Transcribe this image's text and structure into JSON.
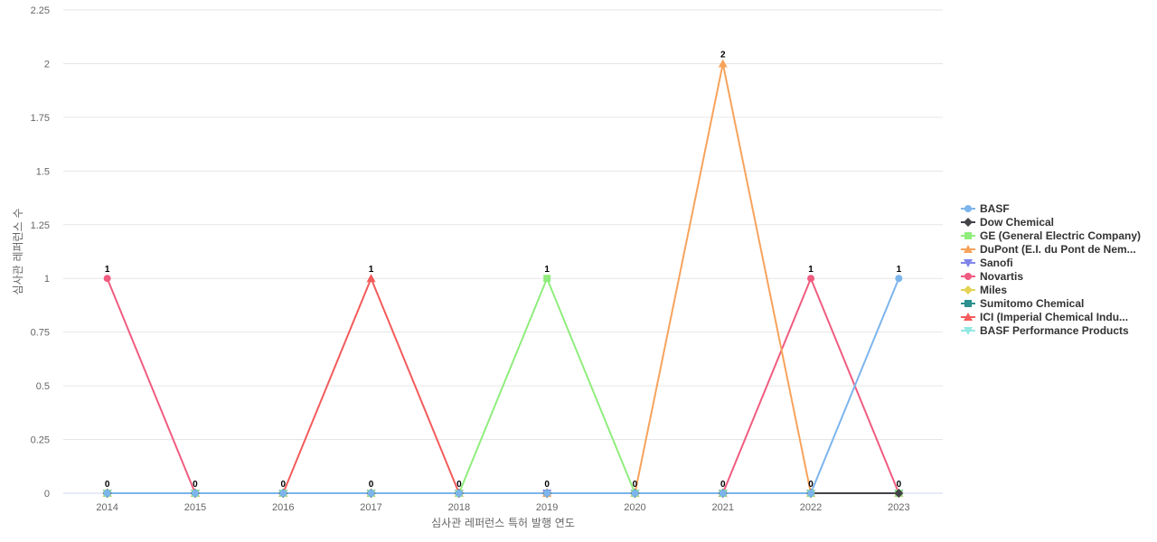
{
  "chart_data": {
    "type": "line",
    "title": "",
    "xlabel": "심사관 레퍼런스 특허 발행 연도",
    "ylabel": "심사관 레퍼런스 수",
    "categories": [
      "2014",
      "2015",
      "2016",
      "2017",
      "2018",
      "2019",
      "2020",
      "2021",
      "2022",
      "2023"
    ],
    "ylim": [
      0,
      2.25
    ],
    "yticks": [
      "0",
      "0.25",
      "0.5",
      "0.75",
      "1",
      "1.25",
      "1.5",
      "1.75",
      "2",
      "2.25"
    ],
    "grid": true,
    "legend_position": "right",
    "top_labels": [
      "1",
      "0",
      "0",
      "1",
      "0",
      "1",
      "0",
      "2",
      "1",
      "1"
    ],
    "bottom_labels": [
      "0",
      "0",
      "0",
      "0",
      "0",
      "0",
      "0",
      "0",
      "0",
      "0"
    ],
    "series": [
      {
        "name": "BASF",
        "color": "#7cb5ec",
        "marker": "circle",
        "values": [
          0,
          0,
          0,
          0,
          0,
          0,
          0,
          0,
          0,
          1
        ]
      },
      {
        "name": "Dow Chemical",
        "color": "#434348",
        "marker": "diamond",
        "values": [
          0,
          0,
          0,
          0,
          0,
          0,
          0,
          0,
          0,
          0
        ]
      },
      {
        "name": "GE (General Electric Company)",
        "color": "#90ed7d",
        "marker": "square",
        "values": [
          0,
          0,
          0,
          0,
          0,
          1,
          0,
          0,
          0,
          0
        ]
      },
      {
        "name": "DuPont (E.I. du Pont de Nem...",
        "color": "#f7a35c",
        "marker": "triangle",
        "values": [
          0,
          0,
          0,
          0,
          0,
          0,
          0,
          2,
          0,
          0
        ]
      },
      {
        "name": "Sanofi",
        "color": "#8085e9",
        "marker": "triangle-down",
        "values": [
          0,
          0,
          0,
          0,
          0,
          0,
          0,
          0,
          0,
          0
        ]
      },
      {
        "name": "Novartis",
        "color": "#f15c80",
        "marker": "circle",
        "values": [
          1,
          0,
          0,
          0,
          0,
          0,
          0,
          0,
          1,
          0
        ]
      },
      {
        "name": "Miles",
        "color": "#e4d354",
        "marker": "diamond",
        "values": [
          0,
          0,
          0,
          0,
          0,
          0,
          0,
          0,
          0,
          0
        ]
      },
      {
        "name": "Sumitomo Chemical",
        "color": "#2b908f",
        "marker": "square",
        "values": [
          0,
          0,
          0,
          0,
          0,
          0,
          0,
          0,
          0,
          0
        ]
      },
      {
        "name": "ICI (Imperial Chemical Indu...",
        "color": "#f45b5b",
        "marker": "triangle",
        "values": [
          0,
          0,
          0,
          1,
          0,
          0,
          0,
          0,
          0,
          0
        ]
      },
      {
        "name": "BASF Performance Products",
        "color": "#91e8e1",
        "marker": "triangle-down",
        "values": [
          0,
          0,
          0,
          0,
          0,
          0,
          0,
          0,
          0,
          0
        ]
      }
    ]
  }
}
